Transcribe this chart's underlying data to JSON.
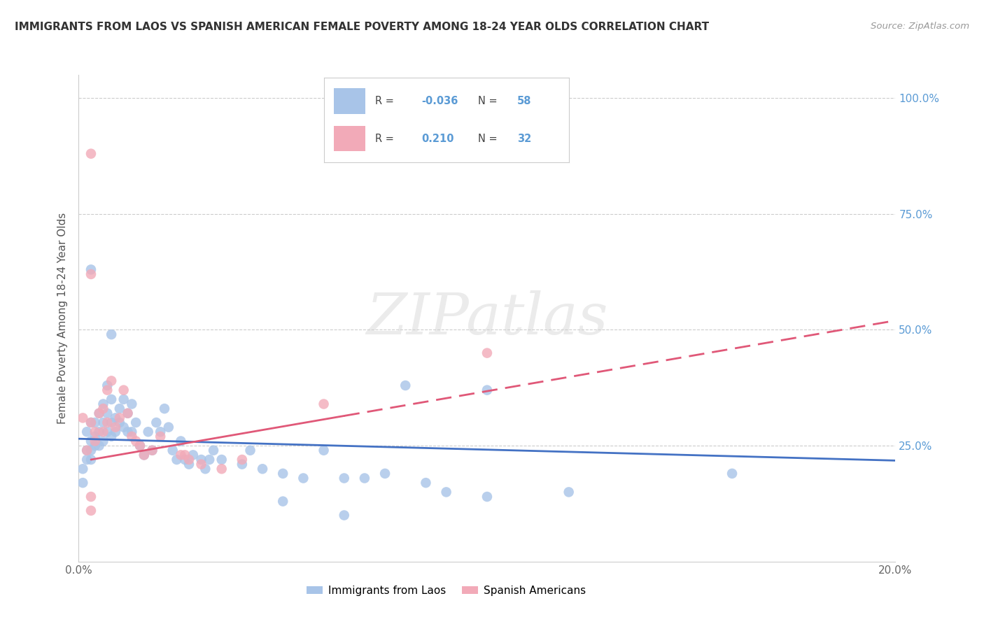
{
  "title": "IMMIGRANTS FROM LAOS VS SPANISH AMERICAN FEMALE POVERTY AMONG 18-24 YEAR OLDS CORRELATION CHART",
  "source": "Source: ZipAtlas.com",
  "ylabel": "Female Poverty Among 18-24 Year Olds",
  "xlim": [
    0.0,
    0.2
  ],
  "ylim": [
    0.0,
    1.05
  ],
  "color_blue": "#a8c4e8",
  "color_pink": "#f2aab8",
  "line_blue": "#4472c4",
  "line_pink": "#e05878",
  "background_color": "#ffffff",
  "watermark": "ZIPatlas",
  "blue_dots": [
    [
      0.001,
      0.2
    ],
    [
      0.001,
      0.17
    ],
    [
      0.002,
      0.24
    ],
    [
      0.002,
      0.28
    ],
    [
      0.002,
      0.22
    ],
    [
      0.003,
      0.26
    ],
    [
      0.003,
      0.3
    ],
    [
      0.003,
      0.24
    ],
    [
      0.003,
      0.22
    ],
    [
      0.004,
      0.3
    ],
    [
      0.004,
      0.27
    ],
    [
      0.004,
      0.25
    ],
    [
      0.005,
      0.28
    ],
    [
      0.005,
      0.25
    ],
    [
      0.005,
      0.32
    ],
    [
      0.006,
      0.3
    ],
    [
      0.006,
      0.26
    ],
    [
      0.006,
      0.34
    ],
    [
      0.007,
      0.38
    ],
    [
      0.007,
      0.28
    ],
    [
      0.007,
      0.32
    ],
    [
      0.008,
      0.3
    ],
    [
      0.008,
      0.27
    ],
    [
      0.008,
      0.35
    ],
    [
      0.009,
      0.31
    ],
    [
      0.009,
      0.28
    ],
    [
      0.01,
      0.33
    ],
    [
      0.01,
      0.3
    ],
    [
      0.011,
      0.35
    ],
    [
      0.011,
      0.29
    ],
    [
      0.012,
      0.32
    ],
    [
      0.012,
      0.28
    ],
    [
      0.013,
      0.34
    ],
    [
      0.013,
      0.28
    ],
    [
      0.014,
      0.3
    ],
    [
      0.015,
      0.25
    ],
    [
      0.016,
      0.23
    ],
    [
      0.017,
      0.28
    ],
    [
      0.018,
      0.24
    ],
    [
      0.019,
      0.3
    ],
    [
      0.02,
      0.28
    ],
    [
      0.021,
      0.33
    ],
    [
      0.022,
      0.29
    ],
    [
      0.023,
      0.24
    ],
    [
      0.024,
      0.22
    ],
    [
      0.025,
      0.26
    ],
    [
      0.026,
      0.22
    ],
    [
      0.027,
      0.21
    ],
    [
      0.028,
      0.23
    ],
    [
      0.03,
      0.22
    ],
    [
      0.031,
      0.2
    ],
    [
      0.032,
      0.22
    ],
    [
      0.033,
      0.24
    ],
    [
      0.035,
      0.22
    ],
    [
      0.04,
      0.21
    ],
    [
      0.042,
      0.24
    ],
    [
      0.045,
      0.2
    ],
    [
      0.05,
      0.19
    ],
    [
      0.055,
      0.18
    ],
    [
      0.06,
      0.24
    ],
    [
      0.065,
      0.18
    ],
    [
      0.07,
      0.18
    ],
    [
      0.075,
      0.19
    ],
    [
      0.085,
      0.17
    ],
    [
      0.09,
      0.15
    ],
    [
      0.16,
      0.19
    ],
    [
      0.003,
      0.63
    ],
    [
      0.008,
      0.49
    ],
    [
      0.08,
      0.38
    ],
    [
      0.1,
      0.37
    ],
    [
      0.12,
      0.15
    ],
    [
      0.05,
      0.13
    ],
    [
      0.065,
      0.1
    ],
    [
      0.1,
      0.14
    ]
  ],
  "pink_dots": [
    [
      0.001,
      0.31
    ],
    [
      0.002,
      0.24
    ],
    [
      0.003,
      0.3
    ],
    [
      0.003,
      0.88
    ],
    [
      0.003,
      0.62
    ],
    [
      0.004,
      0.28
    ],
    [
      0.004,
      0.26
    ],
    [
      0.005,
      0.32
    ],
    [
      0.006,
      0.33
    ],
    [
      0.006,
      0.28
    ],
    [
      0.007,
      0.37
    ],
    [
      0.007,
      0.3
    ],
    [
      0.008,
      0.39
    ],
    [
      0.009,
      0.29
    ],
    [
      0.01,
      0.31
    ],
    [
      0.011,
      0.37
    ],
    [
      0.012,
      0.32
    ],
    [
      0.013,
      0.27
    ],
    [
      0.014,
      0.26
    ],
    [
      0.015,
      0.25
    ],
    [
      0.016,
      0.23
    ],
    [
      0.018,
      0.24
    ],
    [
      0.02,
      0.27
    ],
    [
      0.025,
      0.23
    ],
    [
      0.026,
      0.23
    ],
    [
      0.027,
      0.22
    ],
    [
      0.03,
      0.21
    ],
    [
      0.035,
      0.2
    ],
    [
      0.04,
      0.22
    ],
    [
      0.003,
      0.14
    ],
    [
      0.003,
      0.11
    ],
    [
      0.06,
      0.34
    ],
    [
      0.1,
      0.45
    ]
  ],
  "blue_line_x": [
    0.0,
    0.2
  ],
  "blue_line_y": [
    0.265,
    0.218
  ],
  "pink_line_x": [
    0.003,
    0.2
  ],
  "pink_line_y": [
    0.22,
    0.52
  ]
}
